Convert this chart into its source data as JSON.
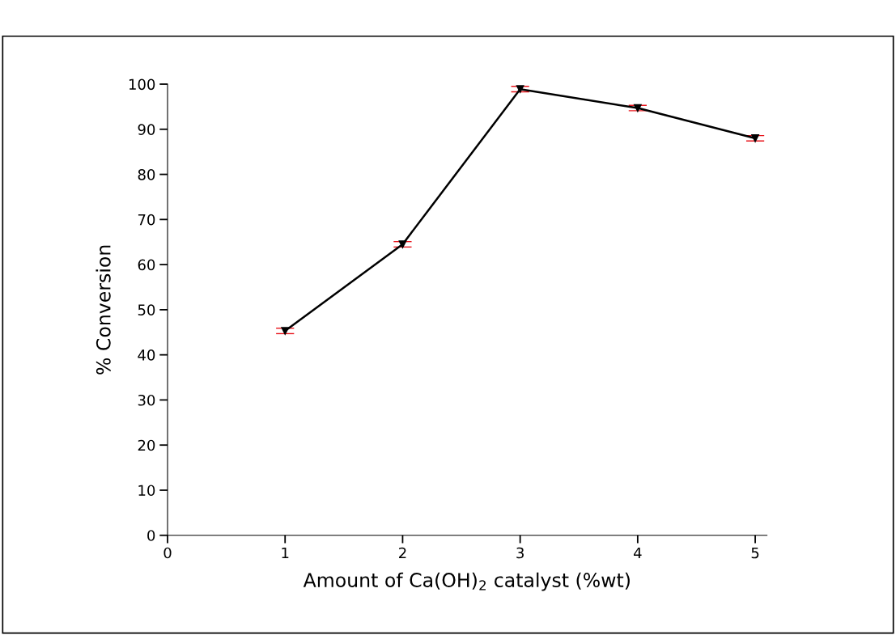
{
  "chart_data": {
    "type": "line",
    "xlabel": "Amount of Ca(OH)$_{2}$ catalyst (%wt)",
    "ylabel": "% Conversion",
    "x": [
      1,
      2,
      3,
      4,
      5
    ],
    "series": [
      {
        "color": "#000000",
        "values": [
          45.3,
          64.5,
          98.9,
          94.7,
          88.0
        ],
        "errors": [
          0.6,
          0.6,
          0.6,
          0.6,
          0.6
        ]
      }
    ],
    "xlim": [
      0,
      5.1
    ],
    "xticks": [
      0,
      1,
      2,
      3,
      4,
      5
    ],
    "ylim": [
      0,
      100
    ],
    "yticks": [
      0,
      10,
      20,
      30,
      40,
      50,
      60,
      70,
      80,
      90,
      100
    ],
    "marker": "triangle",
    "line_style": "solid",
    "grid": false,
    "legend": false
  }
}
